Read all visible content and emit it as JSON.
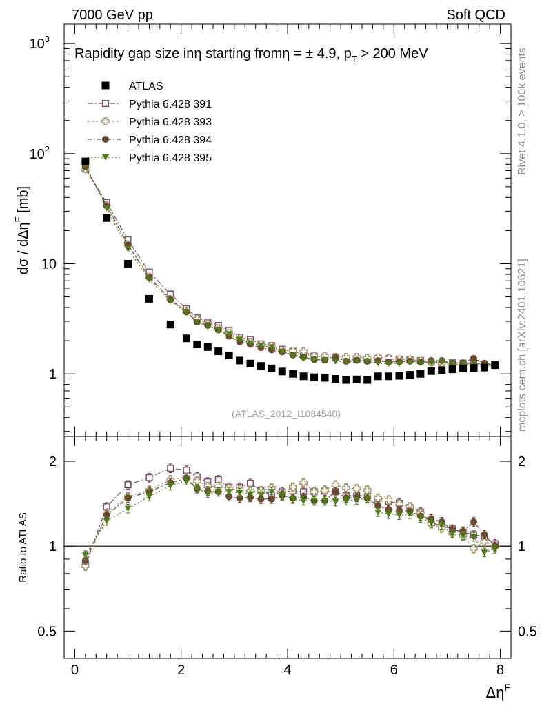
{
  "header": {
    "left": "7000 GeV pp",
    "right": "Soft QCD"
  },
  "side_labels": {
    "rivet": "Rivet 4.1.0, ≥ 100k events",
    "mcplots": "mcplots.cern.ch [arXiv:2401.10621]"
  },
  "colors": {
    "data": "#000000",
    "s391": "#7b4f67",
    "s393": "#a89a6b",
    "s394": "#6b4a32",
    "s395": "#4f7a1e",
    "ratio_line": "#000000"
  },
  "chart_data": [
    {
      "type": "scatter",
      "title": "Rapidity gap size inη starting fromη = ± 4.9, p_T > 200 MeV",
      "title_parts": {
        "a": "Rapidity gap size inη starting fromη = ± 4.9, p",
        "sub": "T",
        "b": " > 200 MeV"
      },
      "ylabel": "dσ / dΔηᶠ [mb]",
      "ylabel_parts": {
        "main": "dσ / dΔη",
        "sup": "F",
        "unit": " [mb]"
      },
      "yscale": "log",
      "ylim": [
        0.27,
        1500
      ],
      "xlim": [
        -0.2,
        8.2
      ],
      "ytick_labels": [
        {
          "value": 1,
          "label": "1"
        },
        {
          "value": 10,
          "label": "10"
        },
        {
          "value": 100,
          "label": "10",
          "sup": "2"
        },
        {
          "value": 1000,
          "label": "10",
          "sup": "3"
        }
      ],
      "watermark": "(ATLAS_2012_I1084540)",
      "legend_position": "top-left",
      "x": [
        0.2,
        0.6,
        1.0,
        1.4,
        1.8,
        2.1,
        2.3,
        2.5,
        2.7,
        2.9,
        3.1,
        3.3,
        3.5,
        3.7,
        3.9,
        4.1,
        4.3,
        4.5,
        4.7,
        4.9,
        5.1,
        5.3,
        5.5,
        5.7,
        5.9,
        6.1,
        6.3,
        6.5,
        6.7,
        6.9,
        7.1,
        7.3,
        7.5,
        7.7,
        7.9
      ],
      "series": [
        {
          "name": "ATLAS",
          "key": "data",
          "marker": "square",
          "values": [
            85,
            26,
            10,
            4.8,
            2.8,
            2.1,
            1.85,
            1.75,
            1.6,
            1.47,
            1.32,
            1.24,
            1.18,
            1.12,
            1.05,
            1.0,
            0.95,
            0.93,
            0.92,
            0.9,
            0.88,
            0.89,
            0.88,
            0.95,
            0.95,
            0.96,
            0.98,
            1.0,
            1.06,
            1.08,
            1.1,
            1.12,
            1.13,
            1.14,
            1.2
          ]
        },
        {
          "name": "Pythia 6.428 391",
          "key": "s391",
          "marker": "open-square",
          "dash": "8,3,2,3",
          "values": [
            73,
            36,
            16.5,
            8.4,
            5.3,
            3.9,
            3.25,
            2.95,
            2.75,
            2.48,
            2.15,
            2.05,
            1.87,
            1.8,
            1.67,
            1.6,
            1.5,
            1.45,
            1.42,
            1.4,
            1.33,
            1.35,
            1.33,
            1.38,
            1.37,
            1.36,
            1.34,
            1.32,
            1.28,
            1.27,
            1.26,
            1.25,
            1.24,
            1.22,
            1.22
          ]
        },
        {
          "name": "Pythia 6.428 393",
          "key": "s393",
          "marker": "open-cross",
          "dash": "3,3",
          "values": [
            72,
            34,
            15,
            7.6,
            4.8,
            3.7,
            3.15,
            2.85,
            2.6,
            2.35,
            2.1,
            1.95,
            1.85,
            1.8,
            1.62,
            1.62,
            1.6,
            1.45,
            1.45,
            1.43,
            1.42,
            1.42,
            1.39,
            1.41,
            1.39,
            1.35,
            1.35,
            1.31,
            1.27,
            1.25,
            1.22,
            1.22,
            1.19,
            1.18,
            1.2
          ]
        },
        {
          "name": "Pythia 6.428 394",
          "key": "s394",
          "marker": "circle",
          "dash": "6,3,2,3",
          "values": [
            76,
            33.5,
            14.8,
            7.5,
            4.7,
            3.65,
            2.95,
            2.75,
            2.5,
            2.2,
            1.95,
            1.85,
            1.73,
            1.65,
            1.58,
            1.48,
            1.42,
            1.35,
            1.33,
            1.4,
            1.3,
            1.33,
            1.3,
            1.32,
            1.28,
            1.29,
            1.3,
            1.28,
            1.32,
            1.32,
            1.25,
            1.26,
            1.38,
            1.25,
            1.2
          ]
        },
        {
          "name": "Pythia 6.428 395",
          "key": "s395",
          "marker": "down-triangle",
          "dash": "2,3",
          "values": [
            79,
            32,
            13.6,
            7.2,
            4.6,
            3.6,
            2.95,
            2.7,
            2.5,
            2.3,
            2.05,
            1.9,
            1.8,
            1.75,
            1.6,
            1.47,
            1.38,
            1.35,
            1.33,
            1.3,
            1.28,
            1.3,
            1.3,
            1.25,
            1.24,
            1.24,
            1.27,
            1.26,
            1.28,
            1.29,
            1.22,
            1.22,
            1.22,
            1.18,
            1.17
          ]
        }
      ]
    },
    {
      "type": "scatter",
      "title": "",
      "ylabel": "Ratio to ATLAS",
      "xlabel": "Δηᶠ",
      "xlabel_parts": {
        "main": "Δη",
        "sup": "F"
      },
      "yscale": "log",
      "ylim": [
        0.4,
        2.45
      ],
      "xlim": [
        -0.2,
        8.2
      ],
      "reference_line": 1,
      "ytick_labels": [
        {
          "value": 0.5,
          "label": "0.5"
        },
        {
          "value": 1,
          "label": "1"
        },
        {
          "value": 2,
          "label": "2"
        }
      ],
      "xtick_labels": [
        {
          "value": 0,
          "label": "0"
        },
        {
          "value": 2,
          "label": "2"
        },
        {
          "value": 4,
          "label": "4"
        },
        {
          "value": 6,
          "label": "6"
        },
        {
          "value": 8,
          "label": "8"
        }
      ],
      "x": [
        0.2,
        0.6,
        1.0,
        1.4,
        1.8,
        2.1,
        2.3,
        2.5,
        2.7,
        2.9,
        3.1,
        3.3,
        3.5,
        3.7,
        3.9,
        4.1,
        4.3,
        4.5,
        4.7,
        4.9,
        5.1,
        5.3,
        5.5,
        5.7,
        5.9,
        6.1,
        6.3,
        6.5,
        6.7,
        6.9,
        7.1,
        7.3,
        7.5,
        7.7,
        7.9
      ],
      "series": [
        {
          "name": "Pythia 6.428 391",
          "key": "s391",
          "marker": "open-square",
          "dash": "8,3,2,3",
          "values": [
            0.86,
            1.38,
            1.65,
            1.75,
            1.89,
            1.86,
            1.76,
            1.69,
            1.72,
            1.62,
            1.62,
            1.67,
            1.57,
            1.52,
            1.56,
            1.57,
            1.56,
            1.56,
            1.57,
            1.56,
            1.51,
            1.52,
            1.5,
            1.45,
            1.44,
            1.42,
            1.37,
            1.32,
            1.21,
            1.18,
            1.15,
            1.12,
            1.1,
            1.08,
            1.02
          ]
        },
        {
          "name": "Pythia 6.428 393",
          "key": "s393",
          "marker": "open-cross",
          "dash": "3,3",
          "values": [
            0.85,
            1.31,
            1.5,
            1.58,
            1.72,
            1.76,
            1.7,
            1.63,
            1.63,
            1.6,
            1.59,
            1.57,
            1.57,
            1.61,
            1.54,
            1.62,
            1.68,
            1.56,
            1.58,
            1.65,
            1.61,
            1.6,
            1.58,
            1.48,
            1.46,
            1.41,
            1.38,
            1.31,
            1.2,
            1.16,
            1.11,
            1.09,
            0.98,
            1.04,
            0.99
          ]
        },
        {
          "name": "Pythia 6.428 394",
          "key": "s394",
          "marker": "circle",
          "dash": "6,3,2,3",
          "values": [
            0.89,
            1.29,
            1.48,
            1.56,
            1.68,
            1.74,
            1.6,
            1.57,
            1.56,
            1.5,
            1.48,
            1.49,
            1.47,
            1.47,
            1.51,
            1.48,
            1.49,
            1.45,
            1.45,
            1.56,
            1.48,
            1.49,
            1.48,
            1.39,
            1.35,
            1.34,
            1.33,
            1.28,
            1.25,
            1.22,
            1.14,
            1.13,
            1.22,
            1.1,
            1.0
          ]
        },
        {
          "name": "Pythia 6.428 395",
          "key": "s395",
          "marker": "down-triangle",
          "dash": "2,3",
          "values": [
            0.93,
            1.23,
            1.36,
            1.5,
            1.64,
            1.71,
            1.6,
            1.54,
            1.56,
            1.56,
            1.55,
            1.53,
            1.53,
            1.56,
            1.52,
            1.47,
            1.45,
            1.45,
            1.45,
            1.44,
            1.45,
            1.46,
            1.48,
            1.32,
            1.3,
            1.29,
            1.3,
            1.26,
            1.21,
            1.19,
            1.11,
            1.09,
            1.08,
            0.95,
            0.98
          ]
        }
      ]
    }
  ]
}
